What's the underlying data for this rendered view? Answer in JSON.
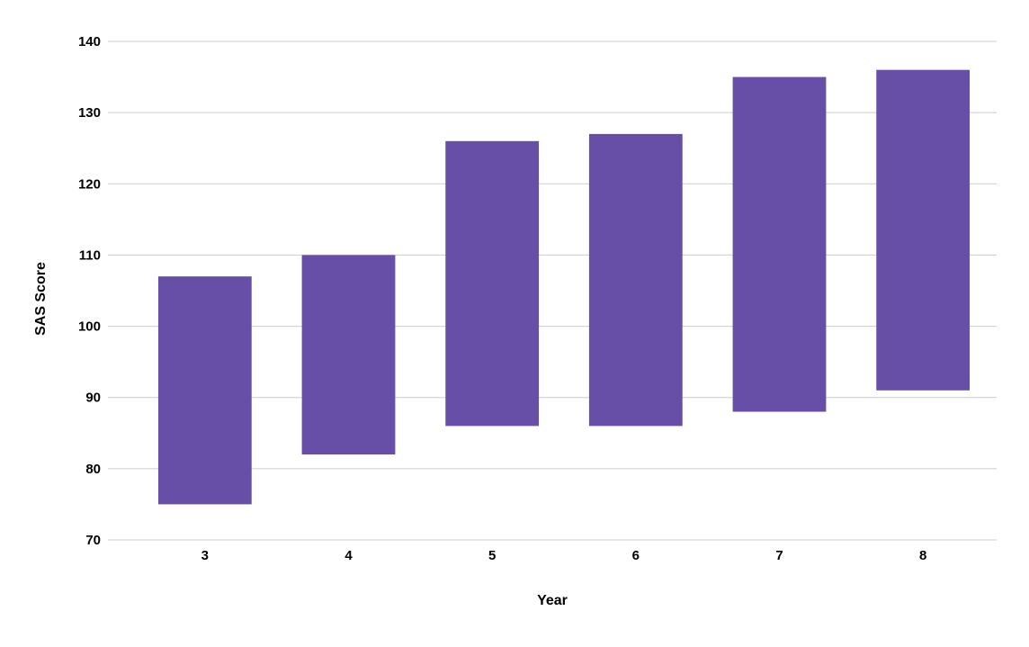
{
  "chart_data": {
    "type": "bar",
    "subtype": "floating-range",
    "categories": [
      "3",
      "4",
      "5",
      "6",
      "7",
      "8"
    ],
    "series": [
      {
        "low": [
          75,
          82,
          86,
          86,
          88,
          91
        ],
        "high": [
          107,
          110,
          126,
          127,
          135,
          136
        ]
      }
    ],
    "title": "",
    "xlabel": "Year",
    "ylabel": "SAS Score",
    "ylim": [
      70,
      140
    ],
    "yticks": [
      70,
      80,
      90,
      100,
      110,
      120,
      130,
      140
    ],
    "grid": true,
    "legend": "none",
    "bar_color": "#674ea7",
    "grid_color": "#cccccc"
  }
}
